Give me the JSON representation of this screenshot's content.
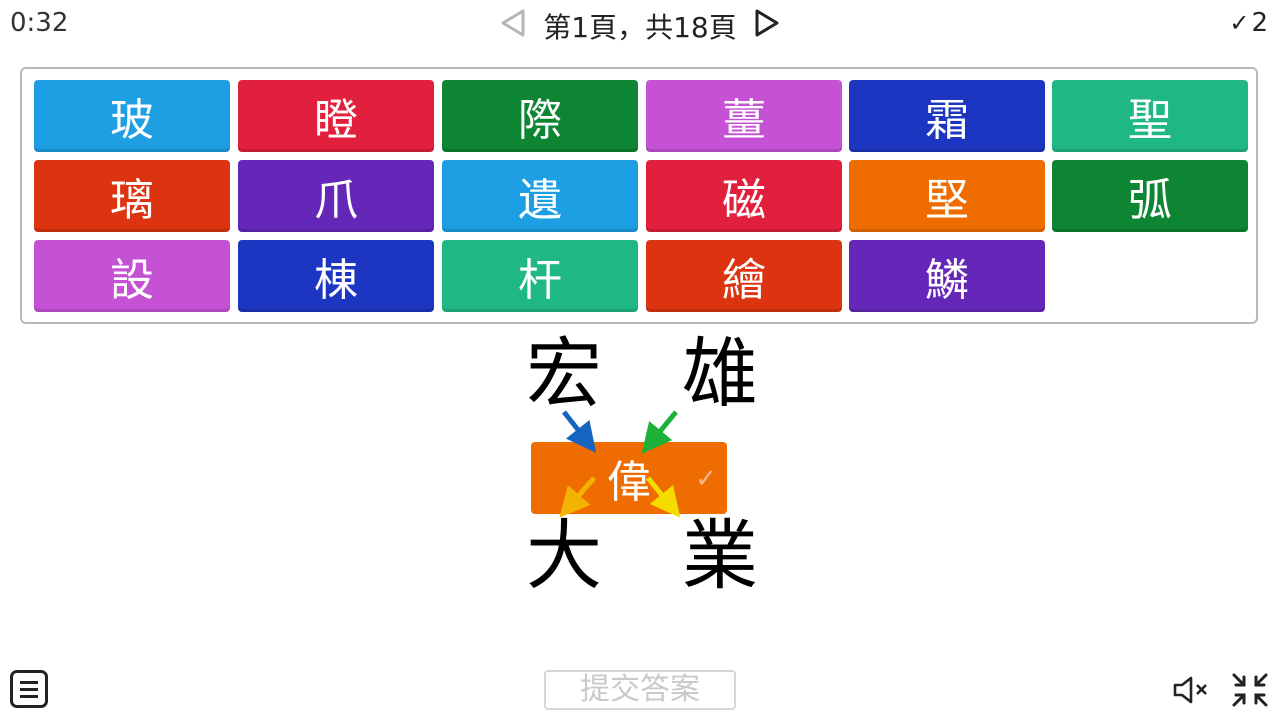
{
  "header": {
    "timer": "0:32",
    "page_text": "第1頁，共18頁",
    "score_check": "✓",
    "score_value": "2"
  },
  "tiles": [
    {
      "char": "玻",
      "color": "#1e9ee3"
    },
    {
      "char": "瞪",
      "color": "#e0203c"
    },
    {
      "char": "際",
      "color": "#0d8532"
    },
    {
      "char": "薑",
      "color": "#c552d4"
    },
    {
      "char": "霜",
      "color": "#1d36c2"
    },
    {
      "char": "聖",
      "color": "#1fb884"
    },
    {
      "char": "璃",
      "color": "#dc3410"
    },
    {
      "char": "爪",
      "color": "#6427b7"
    },
    {
      "char": "遺",
      "color": "#1e9ee3"
    },
    {
      "char": "磁",
      "color": "#e0203c"
    },
    {
      "char": "堅",
      "color": "#ef6c00"
    },
    {
      "char": "弧",
      "color": "#0d8532"
    },
    {
      "char": "設",
      "color": "#c552d4"
    },
    {
      "char": "棟",
      "color": "#1d36c2"
    },
    {
      "char": "杆",
      "color": "#1fb884"
    },
    {
      "char": "繪",
      "color": "#dc3410"
    },
    {
      "char": "鱗",
      "color": "#6427b7"
    }
  ],
  "puzzle": {
    "top_left": "宏",
    "top_right": "雄",
    "bottom_left": "大",
    "bottom_right": "業",
    "answer": "偉",
    "answer_color": "#ef6c00",
    "answer_check": "✓",
    "arrow_colors": {
      "top_left": "#1565c0",
      "top_right": "#1db13a",
      "bottom_left": "#f2b400",
      "bottom_right": "#f5dc00"
    }
  },
  "footer": {
    "submit_label": "提交答案"
  },
  "icons": {
    "prev": "prev-page-icon",
    "next": "next-page-icon",
    "menu": "menu-icon",
    "mute": "mute-icon",
    "exit_fullscreen": "exit-fullscreen-icon"
  }
}
